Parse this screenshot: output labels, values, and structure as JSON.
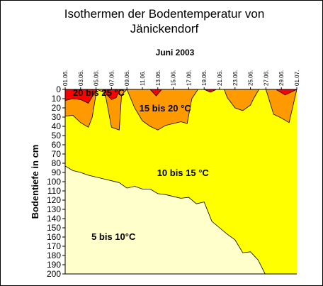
{
  "chart_data": {
    "type": "area",
    "title_line1": "Isothermen der Bodentemperatur von",
    "title_line2": "Jänickendorf",
    "subtitle": "Juni 2003",
    "ylabel": "Bodentiefe in cm",
    "ylim": [
      0,
      200
    ],
    "y_ticks": [
      0,
      10,
      20,
      30,
      40,
      50,
      60,
      70,
      80,
      90,
      100,
      110,
      120,
      130,
      140,
      150,
      160,
      170,
      180,
      190,
      200
    ],
    "x_labels": [
      "01.06.",
      "03.06.",
      "05.06.",
      "07.06.",
      "09.06.",
      "11.06.",
      "13.06.",
      "15.06.",
      "17.06.",
      "19.06.",
      "21.06.",
      "23.06.",
      "25.06.",
      "27.06.",
      "29.06.",
      "01.07."
    ],
    "x_day_range": [
      1,
      31
    ],
    "colors": {
      "5_10": "#ffffcc",
      "10_15": "#ffff00",
      "15_20": "#ff9900",
      "20_25": "#ff0000"
    },
    "region_labels": [
      {
        "text": "20 bis 25 °C",
        "day": 2.0,
        "depth": 7
      },
      {
        "text": "15 bis 20 °C",
        "day": 10.6,
        "depth": 24
      },
      {
        "text": "10 bis 15 °C",
        "day": 12.9,
        "depth": 94
      },
      {
        "text": "5 bis 10°C",
        "day": 4.4,
        "depth": 163
      }
    ],
    "isotherm_10": [
      {
        "day": 1.0,
        "depth": 83
      },
      {
        "day": 2.0,
        "depth": 88
      },
      {
        "day": 3.0,
        "depth": 90
      },
      {
        "day": 4.0,
        "depth": 93
      },
      {
        "day": 5.0,
        "depth": 95
      },
      {
        "day": 6.0,
        "depth": 97
      },
      {
        "day": 7.0,
        "depth": 99
      },
      {
        "day": 8.0,
        "depth": 101
      },
      {
        "day": 9.0,
        "depth": 107
      },
      {
        "day": 10.0,
        "depth": 105
      },
      {
        "day": 11.0,
        "depth": 108
      },
      {
        "day": 12.0,
        "depth": 108
      },
      {
        "day": 13.0,
        "depth": 113
      },
      {
        "day": 14.0,
        "depth": 114
      },
      {
        "day": 15.0,
        "depth": 116
      },
      {
        "day": 16.0,
        "depth": 118
      },
      {
        "day": 17.0,
        "depth": 117
      },
      {
        "day": 18.0,
        "depth": 124
      },
      {
        "day": 19.0,
        "depth": 122
      },
      {
        "day": 20.0,
        "depth": 143
      },
      {
        "day": 21.0,
        "depth": 150
      },
      {
        "day": 22.0,
        "depth": 157
      },
      {
        "day": 23.0,
        "depth": 163
      },
      {
        "day": 24.0,
        "depth": 177
      },
      {
        "day": 25.0,
        "depth": 176
      },
      {
        "day": 26.0,
        "depth": 185
      },
      {
        "day": 26.9,
        "depth": 200
      }
    ],
    "isotherm_15": [
      {
        "day": 1.0,
        "depth": 29
      },
      {
        "day": 2.0,
        "depth": 28
      },
      {
        "day": 3.0,
        "depth": 36
      },
      {
        "day": 4.0,
        "depth": 41
      },
      {
        "day": 4.5,
        "depth": 30
      },
      {
        "day": 5.1,
        "depth": 0
      },
      {
        "day": 6.0,
        "depth": 3
      },
      {
        "day": 6.3,
        "depth": 10
      },
      {
        "day": 7.0,
        "depth": 41
      },
      {
        "day": 8.0,
        "depth": 44
      },
      {
        "day": 8.3,
        "depth": 6
      },
      {
        "day": 9.0,
        "depth": 0
      },
      {
        "day": 10.0,
        "depth": 20
      },
      {
        "day": 11.0,
        "depth": 34
      },
      {
        "day": 12.0,
        "depth": 40
      },
      {
        "day": 13.0,
        "depth": 44
      },
      {
        "day": 14.0,
        "depth": 39
      },
      {
        "day": 15.0,
        "depth": 37
      },
      {
        "day": 16.0,
        "depth": 35
      },
      {
        "day": 16.8,
        "depth": 37
      },
      {
        "day": 17.4,
        "depth": 10
      },
      {
        "day": 18.2,
        "depth": 0
      },
      {
        "day": 21.6,
        "depth": 0
      },
      {
        "day": 22.0,
        "depth": 9
      },
      {
        "day": 23.0,
        "depth": 20
      },
      {
        "day": 24.0,
        "depth": 23
      },
      {
        "day": 25.0,
        "depth": 17
      },
      {
        "day": 25.4,
        "depth": 10
      },
      {
        "day": 26.1,
        "depth": 0
      },
      {
        "day": 27.0,
        "depth": 0
      },
      {
        "day": 28.0,
        "depth": 27
      },
      {
        "day": 29.0,
        "depth": 31
      },
      {
        "day": 30.0,
        "depth": 36
      },
      {
        "day": 31.0,
        "depth": 0
      }
    ],
    "isotherm_20_patches": [
      [
        {
          "day": 1.0,
          "depth": 0
        },
        {
          "day": 1.0,
          "depth": 12
        },
        {
          "day": 2.0,
          "depth": 10
        },
        {
          "day": 3.0,
          "depth": 11
        },
        {
          "day": 4.0,
          "depth": 15
        },
        {
          "day": 4.8,
          "depth": 4
        },
        {
          "day": 5.1,
          "depth": 0
        }
      ],
      [
        {
          "day": 6.0,
          "depth": 0
        },
        {
          "day": 6.3,
          "depth": 5
        },
        {
          "day": 7.0,
          "depth": 11
        },
        {
          "day": 7.6,
          "depth": 9
        },
        {
          "day": 8.1,
          "depth": 0
        }
      ],
      [
        {
          "day": 12.0,
          "depth": 0
        },
        {
          "day": 12.8,
          "depth": 7
        },
        {
          "day": 13.5,
          "depth": 0
        }
      ],
      [
        {
          "day": 19.0,
          "depth": 0
        },
        {
          "day": 19.8,
          "depth": 3
        },
        {
          "day": 20.6,
          "depth": 0
        }
      ],
      [
        {
          "day": 28.3,
          "depth": 0
        },
        {
          "day": 29.5,
          "depth": 6
        },
        {
          "day": 31.0,
          "depth": 0
        }
      ]
    ]
  }
}
